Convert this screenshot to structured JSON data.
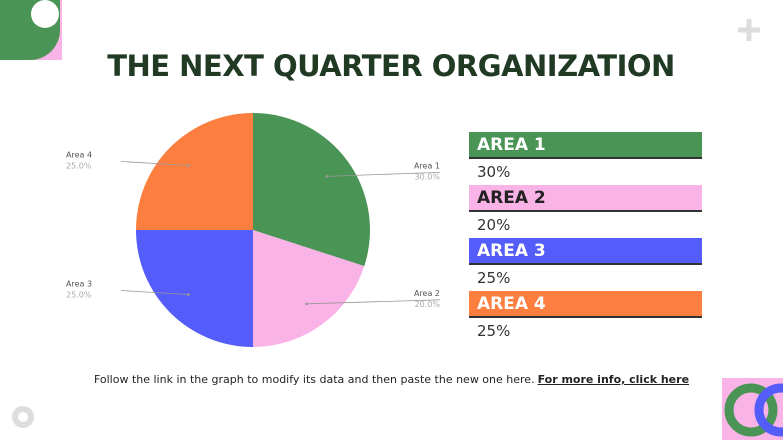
{
  "chart_data": {
    "type": "pie",
    "title": "THE NEXT QUARTER ORGANIZATION",
    "categories": [
      "Area 1",
      "Area 2",
      "Area 3",
      "Area 4"
    ],
    "values": [
      30,
      20,
      25,
      25
    ],
    "value_labels": [
      "30.0%",
      "20.0%",
      "25.0%",
      "25.0%"
    ],
    "colors": [
      "#4a9455",
      "#f9b3e6",
      "#545cf9",
      "#fd7f40"
    ]
  },
  "table": {
    "rows": [
      [
        "AREA 1",
        "30%"
      ],
      [
        "AREA 2",
        "20%"
      ],
      [
        "AREA 3",
        "25%"
      ],
      [
        "AREA 4",
        "25%"
      ]
    ]
  },
  "footer": {
    "text": "Follow the link in the graph to modify its data and then paste the new one here.",
    "link": "For more info, click here"
  }
}
